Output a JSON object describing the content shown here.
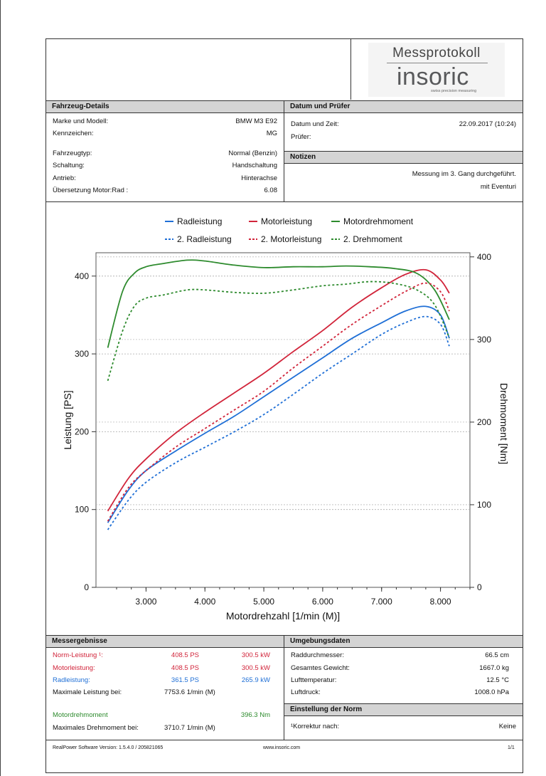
{
  "header": {
    "logo_title": "Messprotokoll",
    "logo_word": "insoric",
    "logo_tagline": "swiss precision measuring"
  },
  "vehicle": {
    "title": "Fahrzeug-Details",
    "rows": [
      {
        "label": "Marke und Modell:",
        "value": "BMW M3 E92"
      },
      {
        "label": "Kennzeichen:",
        "value": "MG"
      },
      {
        "label": "Fahrzeugtyp:",
        "value": "Normal (Benzin)"
      },
      {
        "label": "Schaltung:",
        "value": "Handschaltung"
      },
      {
        "label": "Antrieb:",
        "value": "Hinterachse"
      },
      {
        "label": "Übersetzung Motor:Rad :",
        "value": "6.08"
      }
    ]
  },
  "date": {
    "title": "Datum und Prüfer",
    "rows": [
      {
        "label": "Datum und Zeit:",
        "value": "22.09.2017 (10:24)"
      },
      {
        "label": "Prüfer:",
        "value": ""
      }
    ]
  },
  "notes": {
    "title": "Notizen",
    "line1": "Messung im 3. Gang durchgeführt.",
    "line2": "mit Eventuri"
  },
  "chart_data": {
    "type": "line",
    "xlabel": "Motordrehzahl [1/min (M)]",
    "ylabel": "Leistung [PS]",
    "y2label": "Drehmoment [Nm]",
    "xlim": [
      2150,
      8500
    ],
    "ylim": [
      0,
      430
    ],
    "y2lim": [
      0,
      405
    ],
    "x_ticks": [
      "3.000",
      "4.000",
      "5.000",
      "6.000",
      "7.000",
      "8.000"
    ],
    "x_tick_values": [
      3000,
      4000,
      5000,
      6000,
      7000,
      8000
    ],
    "y_ticks": [
      "0",
      "100",
      "200",
      "300",
      "400"
    ],
    "y_tick_values": [
      0,
      100,
      200,
      300,
      400
    ],
    "y2_ticks": [
      "0",
      "100",
      "200",
      "300",
      "400"
    ],
    "y2_tick_values": [
      0,
      100,
      200,
      300,
      400
    ],
    "legend_placement": "top",
    "grid": true,
    "series": [
      {
        "name": "Radleistung",
        "axis": "left",
        "color": "#1f6fd6",
        "dash": false,
        "x": [
          2350,
          2700,
          3000,
          3500,
          4000,
          4500,
          5000,
          5500,
          6000,
          6500,
          7000,
          7400,
          7750,
          8000,
          8150
        ],
        "y": [
          83,
          125,
          150,
          175,
          198,
          220,
          245,
          270,
          295,
          320,
          340,
          355,
          361,
          350,
          320
        ]
      },
      {
        "name": "Motorleistung",
        "axis": "left",
        "color": "#d1243a",
        "dash": false,
        "x": [
          2350,
          2700,
          3000,
          3500,
          4000,
          4500,
          5000,
          5500,
          6000,
          6500,
          7000,
          7400,
          7750,
          8000,
          8150
        ],
        "y": [
          98,
          140,
          165,
          198,
          225,
          250,
          275,
          303,
          330,
          360,
          385,
          402,
          408,
          395,
          378
        ]
      },
      {
        "name": "Motordrehmoment",
        "axis": "right",
        "color": "#2e8b2e",
        "dash": false,
        "x": [
          2350,
          2600,
          2800,
          3000,
          3300,
          3700,
          4000,
          4500,
          5000,
          5500,
          6000,
          6400,
          6800,
          7200,
          7600,
          7900,
          8150
        ],
        "y": [
          290,
          358,
          380,
          388,
          392,
          396,
          395,
          390,
          387,
          388,
          388,
          389,
          388,
          386,
          380,
          360,
          324
        ]
      },
      {
        "name": "2. Radleistung",
        "axis": "left",
        "color": "#1f6fd6",
        "dash": true,
        "x": [
          2350,
          2700,
          3000,
          3500,
          4000,
          4500,
          5000,
          5500,
          6000,
          6500,
          7000,
          7400,
          7750,
          8000,
          8150
        ],
        "y": [
          74,
          112,
          135,
          160,
          180,
          200,
          222,
          248,
          275,
          300,
          325,
          340,
          348,
          338,
          310
        ]
      },
      {
        "name": "2. Motorleistung",
        "axis": "left",
        "color": "#d1243a",
        "dash": true,
        "x": [
          2350,
          2700,
          3000,
          3500,
          4000,
          4500,
          5000,
          5500,
          6000,
          6500,
          7000,
          7400,
          7750,
          8000,
          8150
        ],
        "y": [
          85,
          128,
          150,
          180,
          204,
          228,
          252,
          282,
          310,
          338,
          362,
          380,
          391,
          380,
          355
        ]
      },
      {
        "name": "2. Drehmoment",
        "axis": "right",
        "color": "#2e8b2e",
        "dash": true,
        "x": [
          2350,
          2600,
          2800,
          3000,
          3300,
          3700,
          4000,
          4500,
          5000,
          5500,
          6000,
          6400,
          6800,
          7200,
          7600,
          7900,
          8150
        ],
        "y": [
          250,
          310,
          340,
          350,
          354,
          360,
          360,
          357,
          356,
          360,
          365,
          367,
          370,
          368,
          360,
          342,
          302
        ]
      }
    ]
  },
  "results": {
    "title": "Messergebnisse",
    "norm": {
      "label": "Norm-Leistung ¹:",
      "ps": "408.5 PS",
      "kw": "300.5 kW"
    },
    "motor": {
      "label": "Motorleistung:",
      "ps": "408.5 PS",
      "kw": "300.5 kW"
    },
    "rad": {
      "label": "Radleistung:",
      "ps": "361.5 PS",
      "kw": "265.9 kW"
    },
    "max_power": {
      "label": "Maximale Leistung bei:",
      "value": "7753.6 1/min (M)"
    },
    "torque": {
      "label": "Motordrehmoment",
      "value": "396.3 Nm"
    },
    "max_torque": {
      "label": "Maximales Drehmoment bei:",
      "value": "3710.7 1/min (M)"
    }
  },
  "environment": {
    "title": "Umgebungsdaten",
    "rows": [
      {
        "label": "Raddurchmesser:",
        "value": "66.5 cm"
      },
      {
        "label": "Gesamtes Gewicht:",
        "value": "1667.0 kg"
      },
      {
        "label": "Lufttemperatur:",
        "value": "12.5 °C"
      },
      {
        "label": "Luftdruck:",
        "value": "1008.0 hPa"
      }
    ]
  },
  "norm": {
    "title": "Einstellung der Norm",
    "label": "¹Korrektur nach:",
    "value": "Keine"
  },
  "footer": {
    "version": "RealPower Software Version: 1.5.4.0 / 205821065",
    "website": "www.insoric.com",
    "page": "1/1"
  }
}
